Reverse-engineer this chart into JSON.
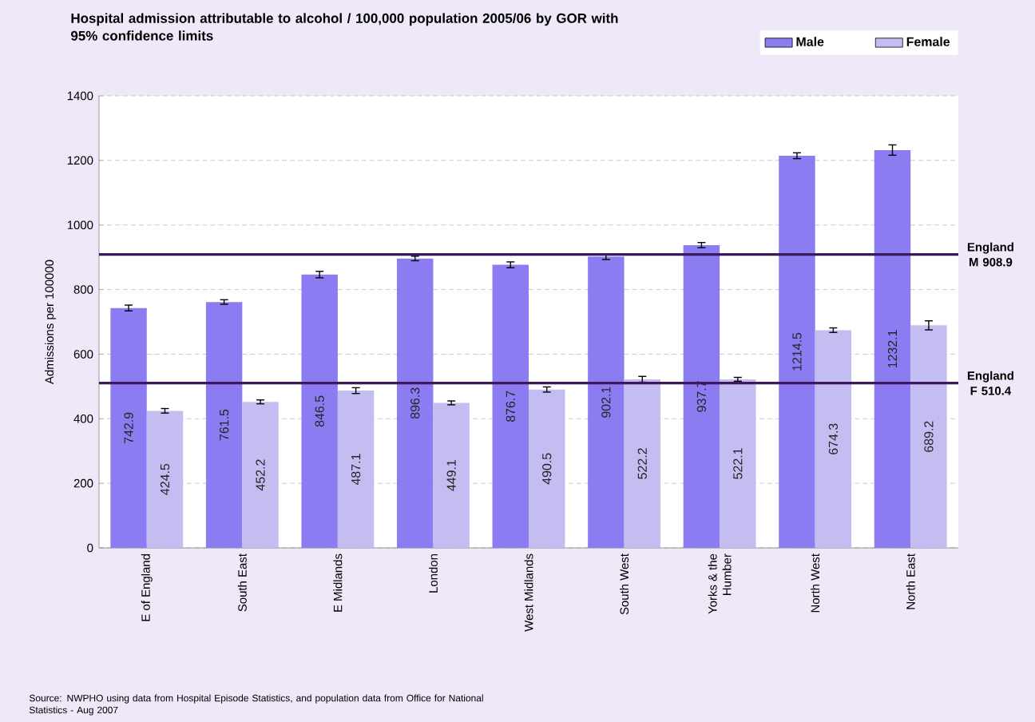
{
  "chart_data": {
    "type": "bar",
    "title": "Hospital admission attributable to alcohol / 100,000 population 2005/06 by GOR with 95% confidence limits",
    "ylabel": "Admissions per 100000",
    "categories": [
      "E of England",
      "South East",
      "E Midlands",
      "London",
      "West Midlands",
      "South West",
      "Yorks & the Humber",
      "North West",
      "North East"
    ],
    "series": [
      {
        "name": "Male",
        "color": "#8b7cf2",
        "values": [
          742.9,
          761.5,
          846.5,
          896.3,
          876.7,
          902.1,
          937.7,
          1214.5,
          1232.1
        ],
        "errors": [
          9,
          7,
          10,
          7,
          9,
          9,
          8,
          9,
          16
        ]
      },
      {
        "name": "Female",
        "color": "#c3bdf2",
        "values": [
          424.5,
          452.2,
          487.1,
          449.1,
          490.5,
          522.2,
          522.1,
          674.3,
          689.2
        ],
        "errors": [
          7,
          6,
          9,
          6,
          8,
          9,
          6,
          7,
          14
        ]
      }
    ],
    "ylim": [
      0,
      1400
    ],
    "yticks": [
      0,
      200,
      400,
      600,
      800,
      1000,
      1200,
      1400
    ],
    "grid": "y",
    "legend": "top right",
    "data_labels": true,
    "ref_lines": [
      {
        "axis": "y",
        "value": 908.9,
        "label": "England M 908.9",
        "color": "#3a1a5c"
      },
      {
        "axis": "y",
        "value": 510.4,
        "label": "England F 510.4",
        "color": "#3a1a5c"
      }
    ],
    "annotations": [
      "Source: NWPHO using data from Hospital Episode Statistics, and population data from Office for National Statistics - Aug 2007"
    ]
  }
}
